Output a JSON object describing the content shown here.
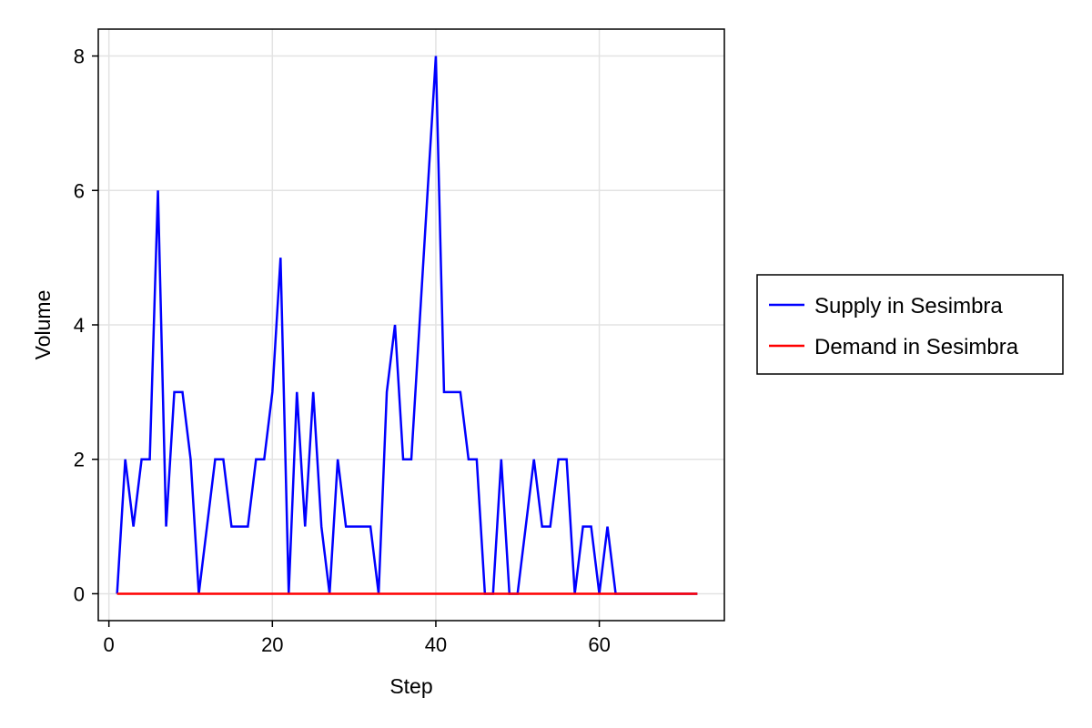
{
  "chart_data": {
    "type": "line",
    "title": "",
    "xlabel": "Step",
    "ylabel": "Volume",
    "xlim": [
      -1.3,
      75.3
    ],
    "ylim": [
      -0.4,
      8.4
    ],
    "xticks": [
      0,
      20,
      40,
      60
    ],
    "yticks": [
      0,
      2,
      4,
      6,
      8
    ],
    "grid": true,
    "legend_position": "right",
    "series": [
      {
        "name": "Supply in Sesimbra",
        "color": "#0000ff",
        "x": [
          1,
          2,
          3,
          4,
          5,
          6,
          7,
          8,
          9,
          10,
          11,
          12,
          13,
          14,
          15,
          16,
          17,
          18,
          19,
          20,
          21,
          22,
          23,
          24,
          25,
          26,
          27,
          28,
          29,
          30,
          31,
          32,
          33,
          34,
          35,
          36,
          37,
          38,
          39,
          40,
          41,
          42,
          43,
          44,
          45,
          46,
          47,
          48,
          49,
          50,
          51,
          52,
          53,
          54,
          55,
          56,
          57,
          58,
          59,
          60,
          61,
          62,
          63,
          64,
          65,
          66,
          67,
          68,
          69,
          70,
          71,
          72
        ],
        "y": [
          0,
          2,
          1,
          2,
          2,
          6,
          1,
          3,
          3,
          2,
          0,
          1,
          2,
          2,
          1,
          1,
          1,
          2,
          2,
          3,
          5,
          0,
          3,
          1,
          3,
          1,
          0,
          2,
          1,
          1,
          1,
          1,
          0,
          3,
          4,
          2,
          2,
          4,
          6,
          8,
          3,
          3,
          3,
          2,
          2,
          0,
          0,
          2,
          0,
          0,
          1,
          2,
          1,
          1,
          2,
          2,
          0,
          1,
          1,
          0,
          1,
          0,
          0,
          0,
          0,
          0,
          0,
          0,
          0,
          0,
          0,
          0
        ]
      },
      {
        "name": "Demand in Sesimbra",
        "color": "#ff0000",
        "x": [
          1,
          72
        ],
        "y": [
          0,
          0
        ]
      }
    ]
  }
}
